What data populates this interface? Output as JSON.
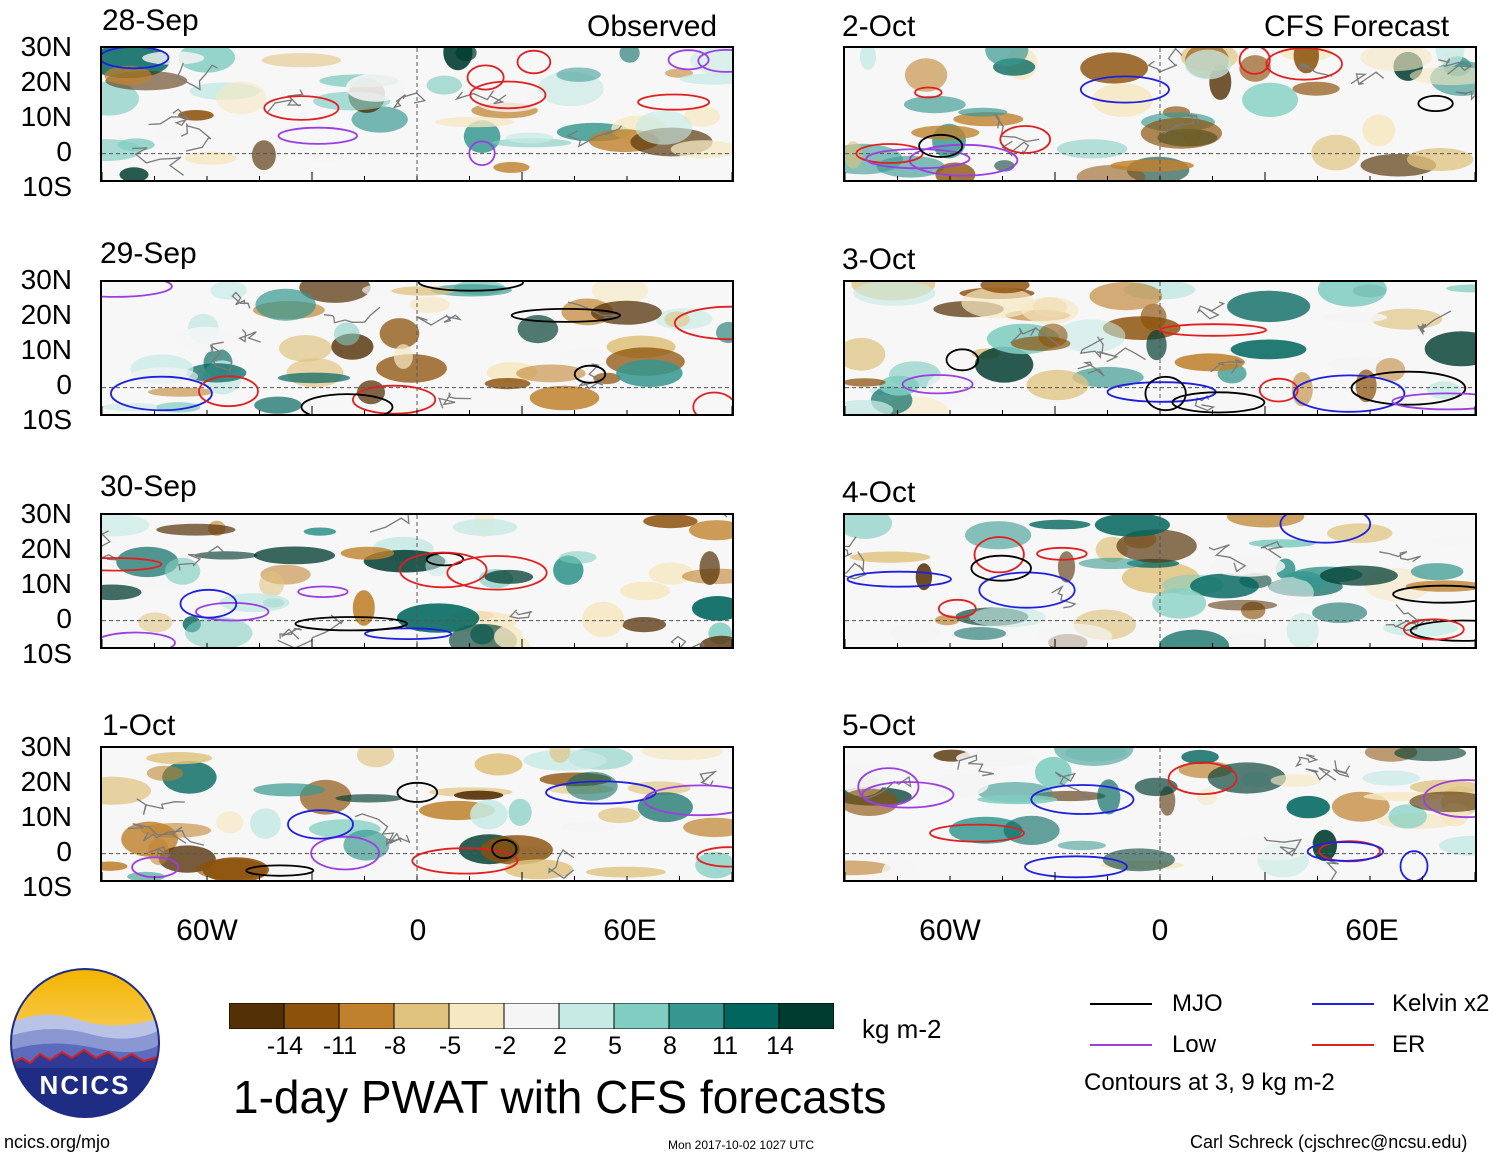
{
  "observed_header": "Observed",
  "forecast_header": "CFS Forecast",
  "panels_observed": [
    {
      "date": "28-Sep"
    },
    {
      "date": "29-Sep"
    },
    {
      "date": "30-Sep"
    },
    {
      "date": "1-Oct"
    }
  ],
  "panels_forecast": [
    {
      "date": "2-Oct"
    },
    {
      "date": "3-Oct"
    },
    {
      "date": "4-Oct"
    },
    {
      "date": "5-Oct"
    }
  ],
  "lat_labels": [
    "30N",
    "20N",
    "10N",
    "0",
    "10S"
  ],
  "lon_labels": [
    "60W",
    "0",
    "60E"
  ],
  "colorbar": {
    "colors": [
      "#543005",
      "#8c510a",
      "#bf812d",
      "#dfc27d",
      "#f6e8c3",
      "#f5f5f5",
      "#c7eae5",
      "#80cdc1",
      "#35978f",
      "#01665e",
      "#003c30"
    ],
    "labels": [
      "-14",
      "-11",
      "-8",
      "-5",
      "-2",
      "2",
      "5",
      "8",
      "11",
      "14"
    ],
    "units": "kg m-2"
  },
  "title": "1-day PWAT with CFS forecasts",
  "legend": {
    "items": [
      {
        "label": "MJO",
        "color": "#000000"
      },
      {
        "label": "Kelvin x2",
        "color": "#1f1fe0"
      },
      {
        "label": "Low",
        "color": "#9a3fe0"
      },
      {
        "label": "ER",
        "color": "#e02020"
      }
    ],
    "note": "Contours at 3, 9 kg m-2"
  },
  "logo_text": "NCICS",
  "footer": {
    "left": "ncics.org/mjo",
    "center": "Mon 2017-10-02 1027 UTC",
    "right": "Carl Schreck (cjschrec@ncsu.edu)"
  }
}
